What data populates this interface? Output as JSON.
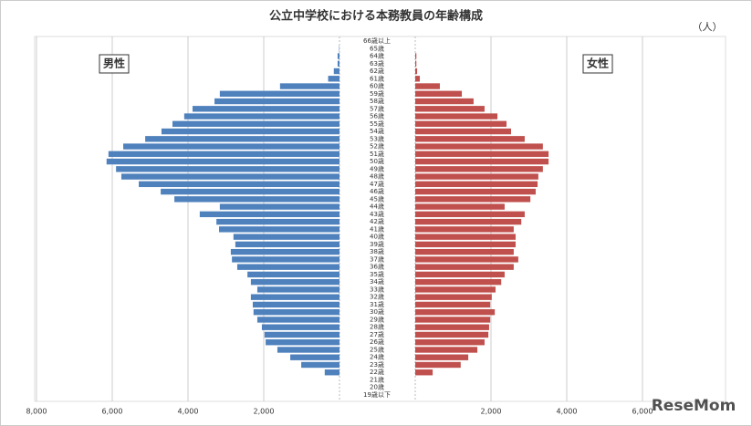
{
  "chart_data": {
    "type": "pyramid",
    "title": "公立中学校における本務教員の年齢構成",
    "unit": "（人）",
    "watermark": "ReseMom",
    "categories": [
      "66歳以上",
      "65歳",
      "64歳",
      "63歳",
      "62歳",
      "61歳",
      "60歳",
      "59歳",
      "58歳",
      "57歳",
      "56歳",
      "55歳",
      "54歳",
      "53歳",
      "52歳",
      "51歳",
      "50歳",
      "49歳",
      "48歳",
      "47歳",
      "46歳",
      "45歳",
      "44歳",
      "43歳",
      "42歳",
      "41歳",
      "40歳",
      "39歳",
      "38歳",
      "37歳",
      "36歳",
      "35歳",
      "34歳",
      "33歳",
      "32歳",
      "31歳",
      "30歳",
      "29歳",
      "28歳",
      "27歳",
      "26歳",
      "25歳",
      "24歳",
      "23歳",
      "22歳",
      "21歳",
      "20歳",
      "19歳以下"
    ],
    "xlim": [
      0,
      8000
    ],
    "grid": true,
    "series": [
      {
        "name": "男性",
        "color": "#4f81bd",
        "side": "left",
        "xticks": [
          {
            "value": 8000,
            "label": "8,000"
          },
          {
            "value": 6000,
            "label": "6,000"
          },
          {
            "value": 4000,
            "label": "4,000"
          },
          {
            "value": 2000,
            "label": "2,000"
          }
        ],
        "values": [
          0,
          10,
          50,
          50,
          150,
          300,
          1570,
          3160,
          3300,
          3880,
          4100,
          4410,
          4700,
          5130,
          5710,
          6100,
          6150,
          5900,
          5760,
          5300,
          4720,
          4360,
          3160,
          3690,
          3250,
          3180,
          2800,
          2750,
          2870,
          2840,
          2700,
          2430,
          2340,
          2170,
          2340,
          2290,
          2270,
          2170,
          2050,
          1980,
          1950,
          1640,
          1300,
          1010,
          390,
          0,
          0,
          0
        ]
      },
      {
        "name": "女性",
        "color": "#c0504d",
        "side": "right",
        "xticks": [
          {
            "value": 2000,
            "label": "2,000"
          },
          {
            "value": 4000,
            "label": "4,000"
          },
          {
            "value": 6000,
            "label": "6,000"
          }
        ],
        "values": [
          0,
          0,
          30,
          30,
          50,
          120,
          650,
          1230,
          1540,
          1830,
          2170,
          2410,
          2530,
          2890,
          3370,
          3520,
          3520,
          3370,
          3250,
          3230,
          3180,
          3040,
          2360,
          2890,
          2800,
          2600,
          2650,
          2650,
          2600,
          2720,
          2600,
          2360,
          2270,
          2120,
          2020,
          1980,
          2100,
          1980,
          1950,
          1930,
          1830,
          1640,
          1400,
          1200,
          460,
          0,
          0,
          0
        ]
      }
    ]
  }
}
